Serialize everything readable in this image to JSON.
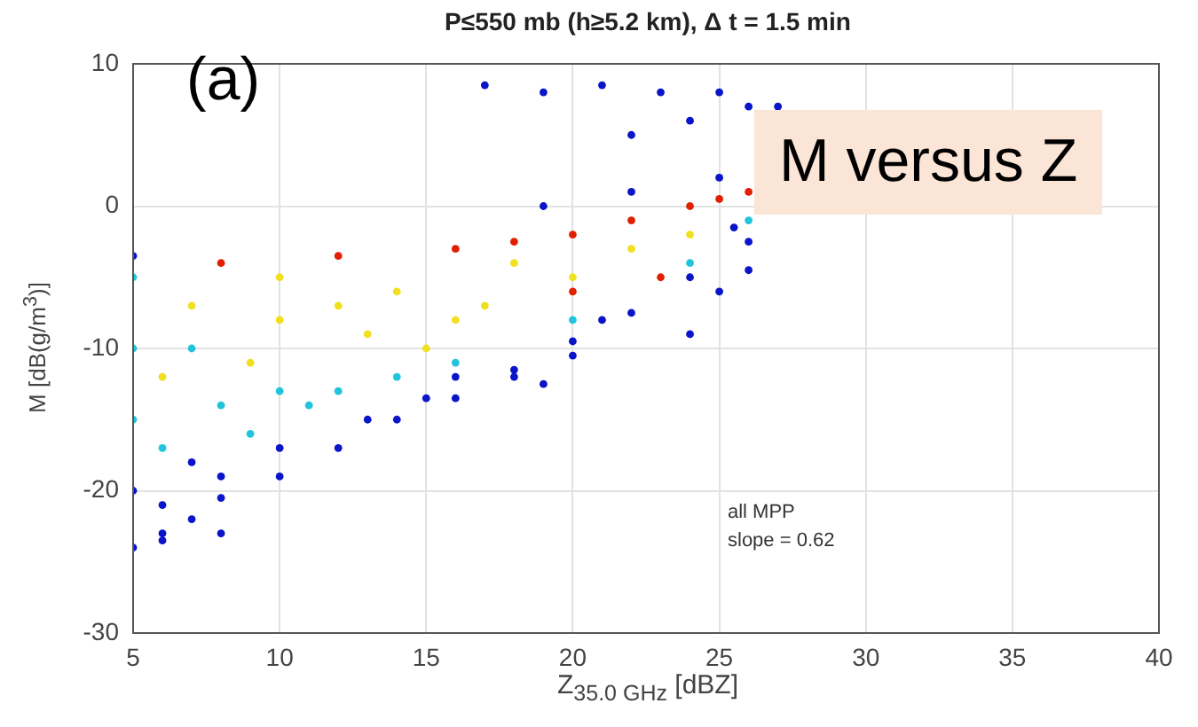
{
  "chart_data": {
    "type": "scatter",
    "title": "P≤550 mb  (h≥5.2 km),   Δ t = 1.5 min",
    "xlabel": "Z$_{35.0 GHz}$ [dBZ]",
    "ylabel": "M [dB(g/m$^{3}$)]",
    "annotations": [
      "(a)",
      "M versus Z",
      "all MPP",
      "slope = 0.62"
    ],
    "xlim": [
      5,
      40
    ],
    "xticks": [
      5,
      10,
      15,
      20,
      25,
      30,
      35,
      40
    ],
    "ylim": [
      -30,
      10
    ],
    "yticks": [
      -30,
      -20,
      -10,
      0,
      10
    ],
    "grid": true,
    "marker": "circle",
    "series": [
      {
        "color": "#0a14c8",
        "x": [
          5,
          5,
          6,
          7,
          8,
          10,
          12,
          14,
          16,
          18,
          20,
          22,
          24,
          26,
          25.5,
          5,
          6,
          7,
          8,
          10,
          13,
          16,
          19,
          22,
          25,
          17,
          19,
          21,
          23,
          25,
          27,
          22,
          24,
          26,
          15,
          18,
          19,
          20,
          21,
          24,
          25,
          26,
          8,
          6
        ],
        "values": [
          -3.5,
          -24,
          -23,
          -22,
          -20.5,
          -19,
          -17,
          -15,
          -13.5,
          -11.5,
          -9.5,
          -7.5,
          -5,
          -2.5,
          -1.5,
          -20,
          -21,
          -18,
          -19,
          -17,
          -15,
          -12,
          0,
          1,
          2,
          8.5,
          8,
          8.5,
          8,
          8,
          7,
          5,
          6,
          7,
          -13.5,
          -12,
          -12.5,
          -10.5,
          -8,
          -9,
          -6,
          -4.5,
          -23,
          -23.5
        ]
      },
      {
        "color": "#22c4dc",
        "x": [
          5,
          5,
          6,
          8,
          10,
          12,
          7,
          14,
          20,
          26,
          5,
          9,
          11,
          16,
          24
        ],
        "values": [
          -5,
          -15,
          -17,
          -14,
          -13,
          -13,
          -10,
          -12,
          -8,
          -1,
          -10,
          -16,
          -14,
          -11,
          -4
        ]
      },
      {
        "color": "#f0e020",
        "x": [
          7,
          10,
          13,
          15,
          17,
          20,
          10,
          14,
          18,
          22,
          6,
          9,
          12,
          16,
          24
        ],
        "values": [
          -7,
          -8,
          -9,
          -10,
          -7,
          -5,
          -5,
          -6,
          -4,
          -3,
          -12,
          -11,
          -7,
          -8,
          -2
        ]
      },
      {
        "color": "#e02000",
        "x": [
          8,
          12,
          16,
          20,
          22,
          24,
          25,
          26,
          23,
          20,
          18
        ],
        "values": [
          -4,
          -3.5,
          -3,
          -2,
          -1,
          0,
          0.5,
          1,
          -5,
          -6,
          -2.5
        ]
      }
    ]
  }
}
